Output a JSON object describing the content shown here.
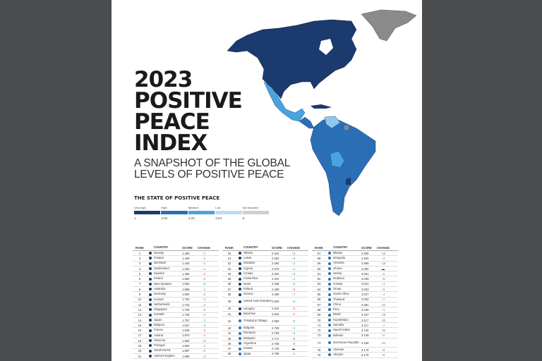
{
  "title": [
    "2023",
    "POSITIVE",
    "PEACE",
    "INDEX"
  ],
  "subtitle": [
    "A SNAPSHOT OF THE GLOBAL",
    "LEVELS OF POSITIVE PEACE"
  ],
  "legend": {
    "heading": "THE STATE OF POSITIVE PEACE",
    "levels": [
      {
        "label": "Very high",
        "value": "1",
        "color": "#1b3a6e"
      },
      {
        "label": "High",
        "value": "2.66",
        "color": "#2a6fb5"
      },
      {
        "label": "Medium",
        "value": "3.25",
        "color": "#49a3dc"
      },
      {
        "label": "Low",
        "value": "3.64",
        "color": "#bcdcf2"
      },
      {
        "label": "Not included",
        "value": "5",
        "color": "#cfcfcf"
      }
    ]
  },
  "table": {
    "headers": {
      "rank": "RANK",
      "country": "COUNTRY",
      "score": "SCORE",
      "change": "CHANGE"
    },
    "columns": [
      [
        [
          "1",
          "Norway",
          "1.400",
          "↑1"
        ],
        [
          "2",
          "Finland",
          "1.425",
          "↑1"
        ],
        [
          "3",
          "Denmark",
          "1.440",
          "↓2"
        ],
        [
          "4",
          "Switzerland",
          "1.453",
          "↑1"
        ],
        [
          "5",
          "Sweden",
          "1.465",
          "↓1"
        ],
        [
          "6",
          "Ireland",
          "1.592",
          "↑4"
        ],
        [
          "7",
          "New Zealand",
          "1.653",
          "↑5"
        ],
        [
          "8",
          "Australia",
          "1.686",
          "↓1"
        ],
        [
          "9",
          "Germany",
          "1.694",
          "↑2"
        ],
        [
          "10",
          "Iceland",
          "1.704",
          "↓4"
        ],
        [
          "11",
          "Netherlands",
          "1.723",
          "↓3"
        ],
        [
          "12",
          "Singapore",
          "1.730",
          "↑3"
        ],
        [
          "13",
          "Canada",
          "1.735",
          "↓4"
        ],
        [
          "14",
          "Japan",
          "1.757",
          "↑1"
        ],
        [
          "15",
          "Belgium",
          "1.827",
          "↑4"
        ],
        [
          "16",
          "France",
          "1.848",
          "↓2"
        ],
        [
          "17",
          "Austria",
          "1.873",
          "↓4"
        ],
        [
          "18",
          "Slovenia",
          "1.863",
          "↑3"
        ],
        [
          "19",
          "Portugal",
          "1.864",
          "↑1"
        ],
        [
          "20",
          "South Korea",
          "1.867",
          "↑4"
        ],
        [
          "21",
          "United Kingdom",
          "1.898",
          "↓3"
        ]
      ],
      [
        [
          "30",
          "Taiwan",
          "2.324",
          "↑6"
        ],
        [
          "31",
          "Latvia",
          "2.352",
          "↑4"
        ],
        [
          "32",
          "Slovakia",
          "2.354",
          "↑1"
        ],
        [
          "33",
          "Cyprus",
          "2.370",
          "↑1"
        ],
        [
          "34",
          "Croatia",
          "2.402",
          "↑3"
        ],
        [
          "35",
          "Costa Rica",
          "2.424",
          "↑1"
        ],
        [
          "36",
          "Israel",
          "2.438",
          "↑4"
        ],
        [
          "37",
          "Poland",
          "2.439",
          "↓6"
        ],
        [
          "38",
          "Greece",
          "2.490",
          "↓7"
        ],
        [
          "39",
          "United Arab Emirates",
          "2.500",
          "↑2"
        ],
        [
          "40",
          "Hungary",
          "2.524",
          "↓6"
        ],
        [
          "41",
          "Mauritius",
          "2.644",
          "↓2"
        ],
        [
          "42",
          "Trinidad & Tobago",
          "2.683",
          "↑3"
        ],
        [
          "43",
          "Bulgaria",
          "2.709",
          "↑1"
        ],
        [
          "44",
          "Romania",
          "2.708",
          "↑2"
        ],
        [
          "45",
          "Malaysia",
          "2.717",
          "↑6"
        ],
        [
          "46",
          "Argentina",
          "2.735",
          "↑5"
        ],
        [
          "47",
          "Kuwait",
          "2.740",
          "▬"
        ],
        [
          "48",
          "Qatar",
          "2.758",
          "↓4"
        ]
      ],
      [
        [
          "57",
          "Bhutan",
          "2.930",
          "↑14"
        ],
        [
          "58",
          "Mongolia",
          "2.942",
          "↑4"
        ],
        [
          "59",
          "Armenia",
          "2.969",
          "↑16"
        ],
        [
          "60",
          "Ghana",
          "3.000",
          "▬"
        ],
        [
          "61",
          "Serbia",
          "3.001",
          "↓5"
        ],
        [
          "62",
          "Moldova",
          "3.009",
          "↑8"
        ],
        [
          "63",
          "Tunisia",
          "3.021",
          "↓4"
        ],
        [
          "64",
          "Oman",
          "3.023",
          "↓6"
        ],
        [
          "65",
          "South Africa",
          "3.027",
          "↓4"
        ],
        [
          "66",
          "Thailand",
          "3.033",
          "↑7"
        ],
        [
          "67",
          "China",
          "3.081",
          "↑11"
        ],
        [
          "68",
          "Peru",
          "3.100",
          "↑1"
        ],
        [
          "69",
          "Brazil",
          "3.107",
          "↓29"
        ],
        [
          "70",
          "Kazakhstan",
          "3.117",
          "↑23"
        ],
        [
          "71",
          "Namibia",
          "3.117",
          "↓7"
        ],
        [
          "72",
          "Saudi Arabia",
          "3.140",
          "↑22"
        ],
        [
          "73",
          "Bahrain",
          "3.149",
          "↓8"
        ],
        [
          "74",
          "Dominican Republic",
          "3.156",
          "↑21"
        ],
        [
          "75",
          "Vietnam",
          "3.176",
          "↑8"
        ],
        [
          "76",
          "Ukraine",
          "3.176",
          "↑5"
        ]
      ]
    ]
  }
}
